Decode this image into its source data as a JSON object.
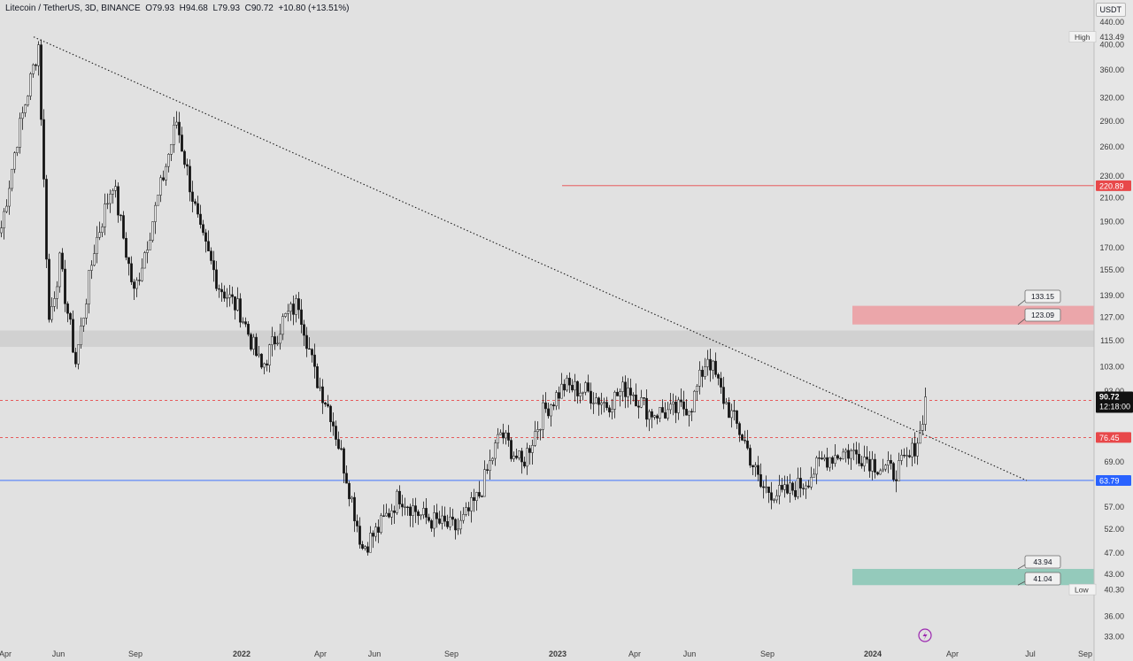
{
  "header": {
    "symbol": "Litecoin / TetherUS",
    "interval": "3D",
    "exchange": "BINANCE",
    "open": "O79.93",
    "high": "H94.68",
    "low": "L79.93",
    "close": "C90.72",
    "change": "+10.80 (+13.51%)"
  },
  "currency": "USDT",
  "colors": {
    "background": "#e1e1e1",
    "candle_up": "#2a2a2a",
    "candle_down": "#111111",
    "resistance_red": "#e8484a",
    "support_blue": "#2962ff",
    "red_zone": "#eba2a6",
    "green_zone": "#8fc8b8",
    "grey_zone": "#cfcfcf"
  },
  "chart_data": {
    "type": "candlestick",
    "y_scale": "log",
    "ylim": [
      32,
      445
    ],
    "y_ticks": [
      33,
      36,
      40.3,
      43,
      47,
      52,
      57,
      63,
      69,
      76,
      84,
      93,
      103,
      115,
      127,
      139,
      155,
      170,
      190,
      210,
      230,
      260,
      290,
      320,
      360,
      400,
      440
    ],
    "y_tick_labels": [
      "33.00",
      "36.00",
      "",
      "43.00",
      "47.00",
      "52.00",
      "57.00",
      "",
      "69.00",
      "",
      "",
      "93.00",
      "103.00",
      "115.00",
      "127.00",
      "139.00",
      "155.00",
      "170.00",
      "190.00",
      "210.00",
      "230.00",
      "260.00",
      "290.00",
      "320.00",
      "360.00",
      "400.00",
      "440.00"
    ],
    "x_labels": [
      "Apr",
      "Jun",
      "Sep",
      "2022",
      "Apr",
      "Jun",
      "Sep",
      "2023",
      "Apr",
      "Jun",
      "Sep",
      "2024",
      "Apr",
      "Jul",
      "Sep"
    ],
    "x_label_bold": [
      false,
      false,
      false,
      true,
      false,
      false,
      false,
      true,
      false,
      false,
      false,
      true,
      false,
      false,
      false
    ],
    "anchors": [
      {
        "d": 0,
        "v": 185
      },
      {
        "d": 6,
        "v": 270
      },
      {
        "d": 14,
        "v": 400
      },
      {
        "d": 18,
        "v": 125
      },
      {
        "d": 22,
        "v": 160
      },
      {
        "d": 28,
        "v": 105
      },
      {
        "d": 35,
        "v": 170
      },
      {
        "d": 42,
        "v": 225
      },
      {
        "d": 50,
        "v": 140
      },
      {
        "d": 58,
        "v": 200
      },
      {
        "d": 66,
        "v": 290
      },
      {
        "d": 75,
        "v": 180
      },
      {
        "d": 82,
        "v": 145
      },
      {
        "d": 90,
        "v": 130
      },
      {
        "d": 98,
        "v": 102
      },
      {
        "d": 106,
        "v": 125
      },
      {
        "d": 112,
        "v": 135
      },
      {
        "d": 118,
        "v": 100
      },
      {
        "d": 124,
        "v": 85
      },
      {
        "d": 130,
        "v": 65
      },
      {
        "d": 136,
        "v": 48
      },
      {
        "d": 142,
        "v": 52
      },
      {
        "d": 150,
        "v": 60
      },
      {
        "d": 158,
        "v": 55
      },
      {
        "d": 166,
        "v": 53
      },
      {
        "d": 172,
        "v": 52
      },
      {
        "d": 180,
        "v": 60
      },
      {
        "d": 188,
        "v": 78
      },
      {
        "d": 196,
        "v": 68
      },
      {
        "d": 204,
        "v": 85
      },
      {
        "d": 212,
        "v": 95
      },
      {
        "d": 220,
        "v": 93
      },
      {
        "d": 228,
        "v": 88
      },
      {
        "d": 236,
        "v": 95
      },
      {
        "d": 244,
        "v": 85
      },
      {
        "d": 252,
        "v": 85
      },
      {
        "d": 260,
        "v": 88
      },
      {
        "d": 266,
        "v": 108
      },
      {
        "d": 272,
        "v": 90
      },
      {
        "d": 280,
        "v": 75
      },
      {
        "d": 286,
        "v": 62
      },
      {
        "d": 294,
        "v": 60
      },
      {
        "d": 302,
        "v": 63
      },
      {
        "d": 310,
        "v": 70
      },
      {
        "d": 318,
        "v": 72
      },
      {
        "d": 324,
        "v": 71
      },
      {
        "d": 330,
        "v": 68
      },
      {
        "d": 336,
        "v": 66
      },
      {
        "d": 342,
        "v": 70
      },
      {
        "d": 346,
        "v": 78
      },
      {
        "d": 348,
        "v": 90.72
      }
    ],
    "summary": {
      "high": 413.49,
      "low": 40.3,
      "last": 90.72
    },
    "horizontal_levels": [
      {
        "price": 220.89,
        "label": "220.89",
        "color": "#e8484a",
        "style": "solid"
      },
      {
        "price": 89.4,
        "label": "89.40",
        "color": "#e8484a",
        "style": "dashed"
      },
      {
        "price": 76.45,
        "label": "76.45",
        "color": "#e8484a",
        "style": "dashed"
      },
      {
        "price": 63.79,
        "label": "63.79",
        "color": "#2962ff",
        "style": "solid"
      }
    ],
    "zones": [
      {
        "top": 120,
        "bottom": 112,
        "color": "#cfcfcf"
      },
      {
        "top": 133.15,
        "bottom": 123.09,
        "color": "#eba2a6"
      },
      {
        "top": 43.94,
        "bottom": 41.04,
        "color": "#8fc8b8"
      }
    ],
    "callouts": [
      "133.15",
      "123.09",
      "43.94",
      "41.04"
    ],
    "high_label": "High",
    "high_value": "413.49",
    "low_label": "Low",
    "low_value": "40.30",
    "last_price": "90.72",
    "countdown": "12:18:00",
    "trendline": {
      "from": 413.49,
      "to": 63.79
    }
  }
}
